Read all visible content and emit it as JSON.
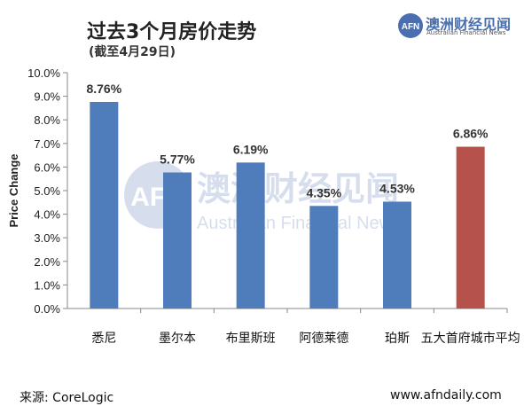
{
  "header": {
    "title": "过去3个月房价走势",
    "subtitle": "(截至4月29日)"
  },
  "logo": {
    "mark": "AFN",
    "name_cn": "澳洲财经见闻",
    "name_en": "Australian Financial News"
  },
  "watermark": {
    "mark": "AFN",
    "name_cn": "澳洲财经见闻",
    "name_en": "Australian Financial News"
  },
  "footer": {
    "source": "来源: CoreLogic",
    "site": "www.afndaily.com"
  },
  "colors": {
    "bar": "#4f7cba",
    "bar_highlight": "#b5524c",
    "logo": "#4a6fb0"
  },
  "chart_data": {
    "type": "bar",
    "title": "过去3个月房价走势",
    "ylabel": "Price Change",
    "xlabel": "",
    "ylim": [
      0,
      10
    ],
    "yticks": [
      "0.0%",
      "1.0%",
      "2.0%",
      "3.0%",
      "4.0%",
      "5.0%",
      "6.0%",
      "7.0%",
      "8.0%",
      "9.0%",
      "10.0%"
    ],
    "categories": [
      "悉尼",
      "墨尔本",
      "布里斯班",
      "阿德莱德",
      "珀斯",
      "五大首府城市平均"
    ],
    "values": [
      8.76,
      5.77,
      6.19,
      4.35,
      4.53,
      6.86
    ],
    "value_labels": [
      "8.76%",
      "5.77%",
      "6.19%",
      "4.35%",
      "4.53%",
      "6.86%"
    ],
    "highlight_index": 5,
    "grid": false,
    "legend": "none"
  }
}
